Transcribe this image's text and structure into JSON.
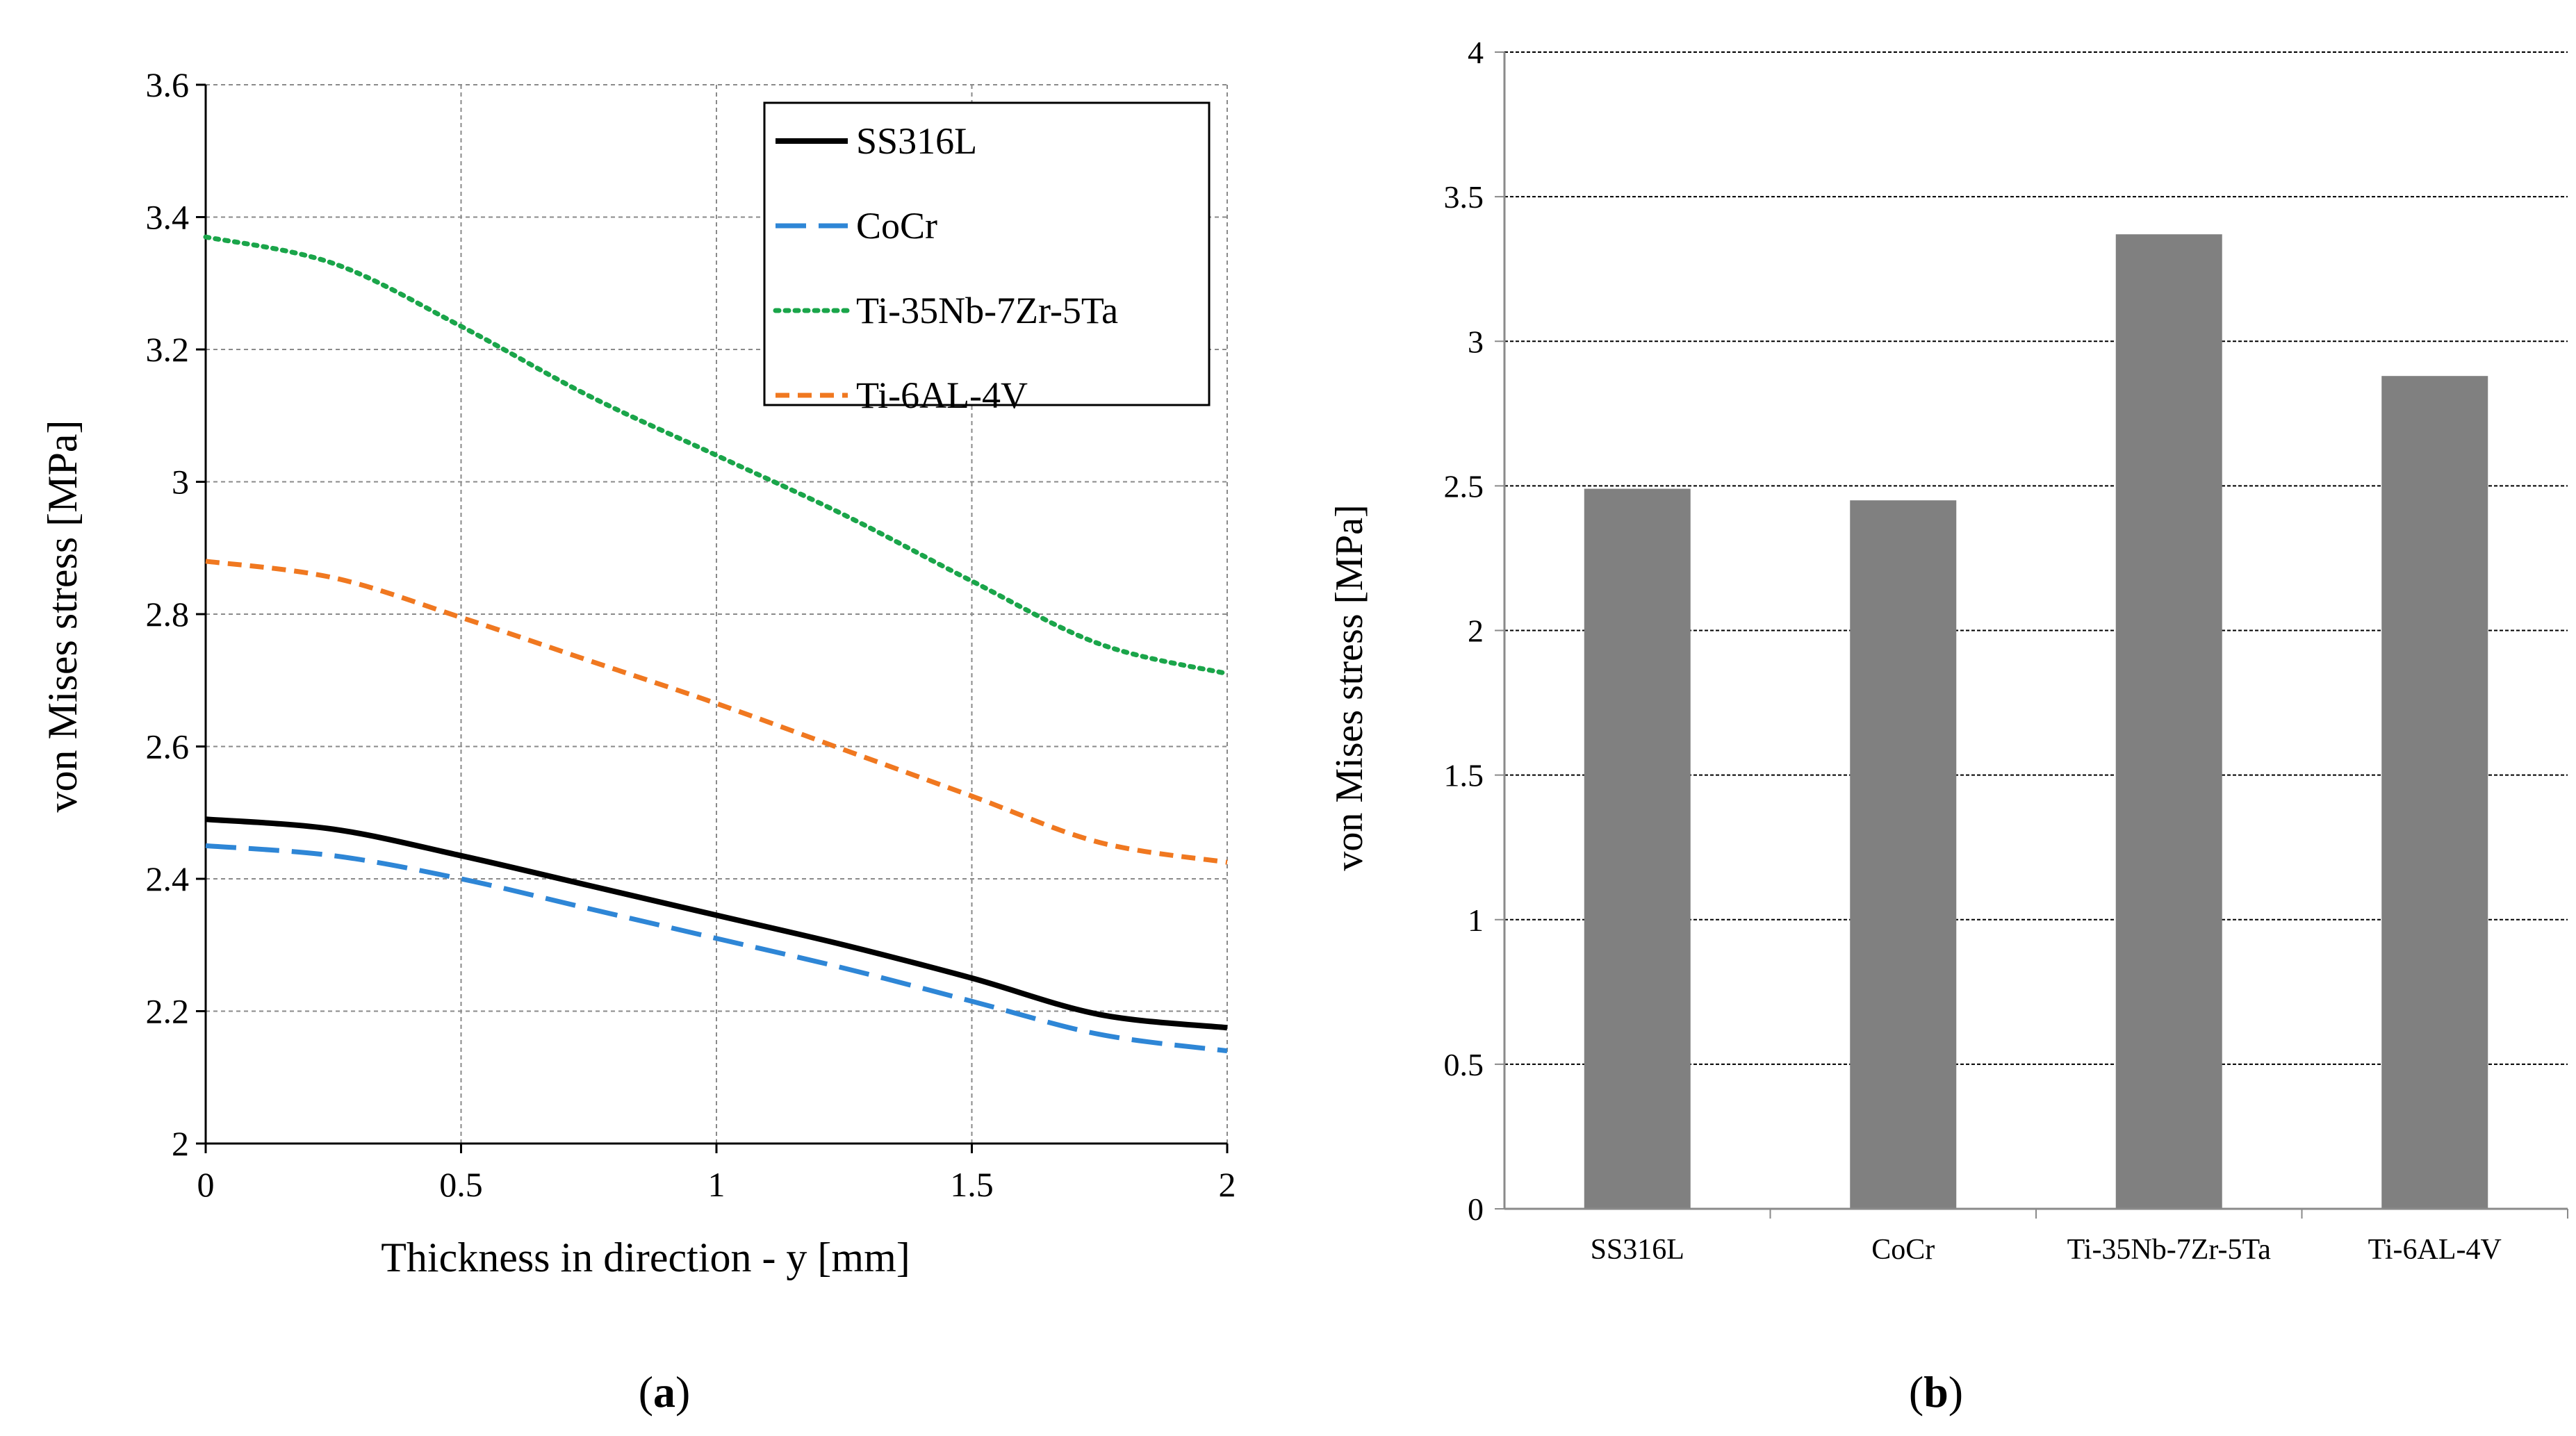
{
  "chart_data": [
    {
      "panel": "a",
      "type": "line",
      "xlabel": "Thickness in direction - y [mm]",
      "ylabel": "von Mises stress [MPa]",
      "xlim": [
        0,
        2
      ],
      "ylim": [
        2,
        3.6
      ],
      "xticks": [
        0,
        0.5,
        1,
        1.5,
        2
      ],
      "xtick_labels": [
        "0",
        "0.5",
        "1",
        "1.5",
        "2"
      ],
      "yticks": [
        2,
        2.2,
        2.4,
        2.6,
        2.8,
        3,
        3.2,
        3.4,
        3.6
      ],
      "ytick_labels": [
        "2",
        "2.2",
        "2.4",
        "2.6",
        "2.8",
        "3",
        "3.2",
        "3.4",
        "3.6"
      ],
      "grid": true,
      "legend_position": "top-right",
      "x": [
        0,
        0.25,
        0.5,
        0.75,
        1,
        1.25,
        1.5,
        1.75,
        2
      ],
      "series": [
        {
          "name": "SS316L",
          "color": "#000000",
          "style": "solid",
          "values": [
            2.49,
            2.475,
            2.435,
            2.39,
            2.345,
            2.3,
            2.25,
            2.195,
            2.175
          ]
        },
        {
          "name": "CoCr",
          "color": "#2e86d6",
          "style": "longdash",
          "values": [
            2.45,
            2.435,
            2.4,
            2.355,
            2.31,
            2.265,
            2.215,
            2.165,
            2.14
          ]
        },
        {
          "name": "Ti-35Nb-7Zr-5Ta",
          "color": "#1aa54a",
          "style": "dotted",
          "values": [
            3.37,
            3.33,
            3.235,
            3.13,
            3.04,
            2.95,
            2.85,
            2.755,
            2.71
          ]
        },
        {
          "name": "Ti-6AL-4V",
          "color": "#f07820",
          "style": "dashed",
          "values": [
            2.88,
            2.855,
            2.795,
            2.73,
            2.665,
            2.595,
            2.525,
            2.455,
            2.425
          ]
        }
      ]
    },
    {
      "panel": "b",
      "type": "bar",
      "categories": [
        "SS316L",
        "CoCr",
        "Ti-35Nb-7Zr-5Ta",
        "Ti-6AL-4V"
      ],
      "values": [
        2.49,
        2.45,
        3.37,
        2.88
      ],
      "ylabel": "von Mises stress [MPa]",
      "xlabel": "",
      "ylim": [
        0,
        4
      ],
      "yticks": [
        0,
        0.5,
        1,
        1.5,
        2,
        2.5,
        3,
        3.5,
        4
      ],
      "ytick_labels": [
        "0",
        "0.5",
        "1",
        "1.5",
        "2",
        "2.5",
        "3",
        "3.5",
        "4"
      ],
      "grid": true,
      "bar_color": "#808080"
    }
  ],
  "labels": {
    "panel_a": {
      "open": "(",
      "letter": "a",
      "close": ")"
    },
    "panel_b": {
      "open": "(",
      "letter": "b",
      "close": ")"
    }
  }
}
